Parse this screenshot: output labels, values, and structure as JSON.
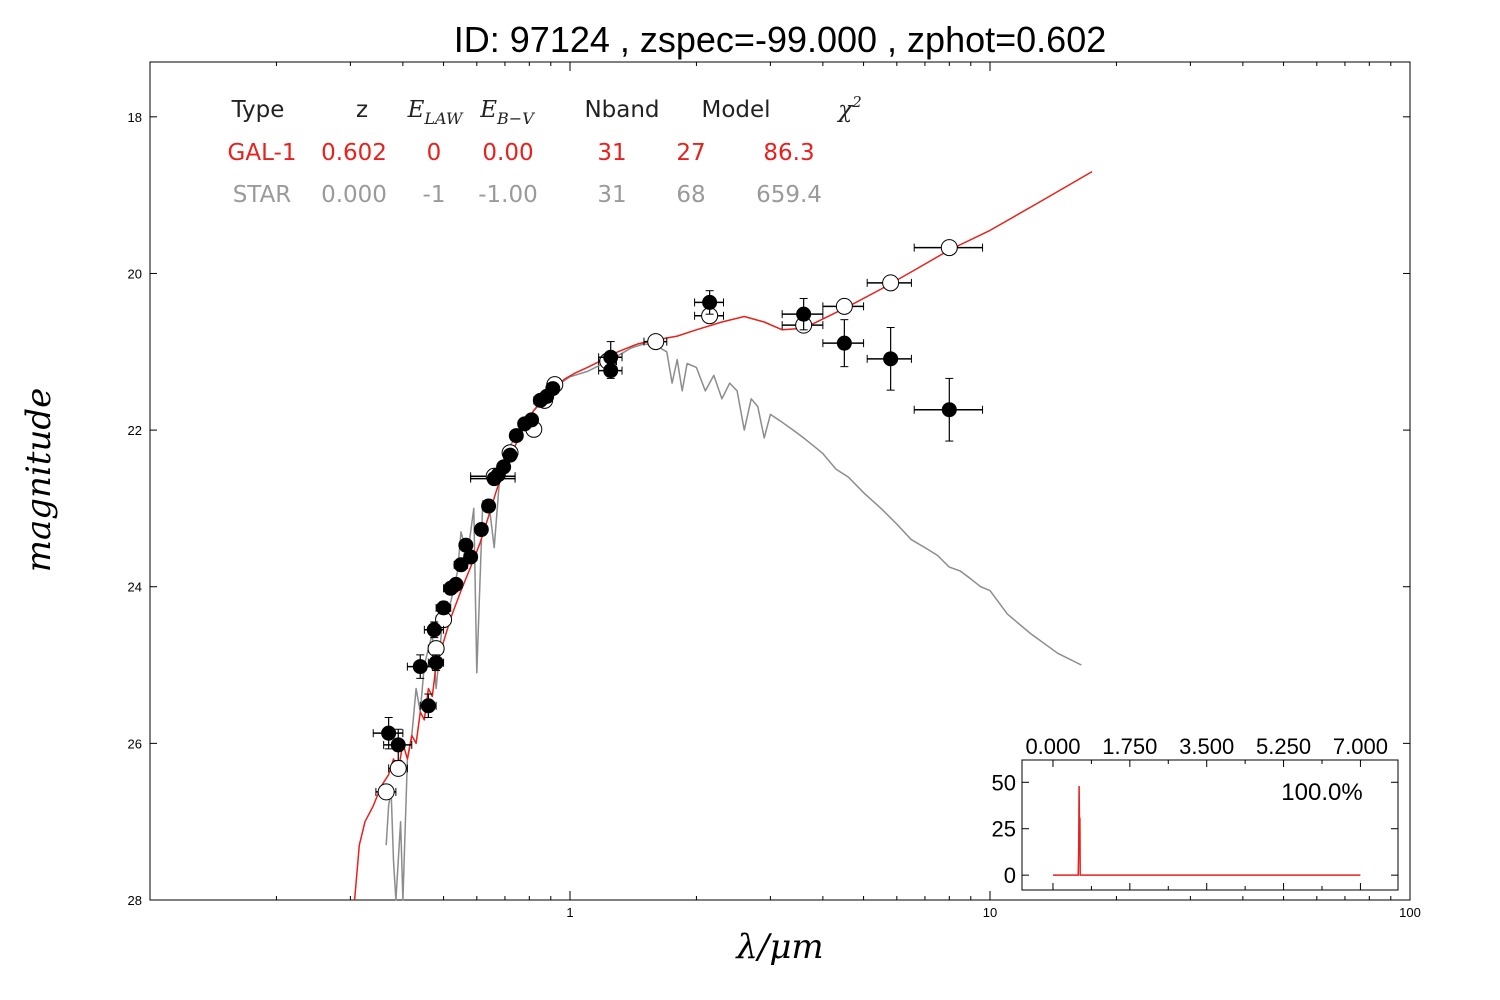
{
  "chart_data": {
    "type": "line",
    "title": "ID:  97124 , zspec=-99.000 , zphot=0.602",
    "xlabel": "λ/μm",
    "ylabel": "magnitude",
    "xscale": "log",
    "xlim": [
      0.1,
      100
    ],
    "ylim": [
      28,
      17.3
    ],
    "y_inverted": true,
    "x_ticks": [
      {
        "value": 1,
        "label": "1"
      },
      {
        "value": 10,
        "label": "10"
      },
      {
        "value": 100,
        "label": "100"
      }
    ],
    "y_ticks": [
      {
        "value": 18,
        "label": "18"
      },
      {
        "value": 20,
        "label": "20"
      },
      {
        "value": 22,
        "label": "22"
      },
      {
        "value": 24,
        "label": "24"
      },
      {
        "value": 26,
        "label": "26"
      },
      {
        "value": 28,
        "label": "28"
      }
    ],
    "table": {
      "headers": [
        {
          "text": "Type",
          "math": false
        },
        {
          "text": "z",
          "math": false
        },
        {
          "text": "E",
          "sub": "LAW",
          "math": true
        },
        {
          "text": "E",
          "sub": "B−V",
          "math": true
        },
        {
          "text": "Nband",
          "math": false
        },
        {
          "text": "Model",
          "math": false
        },
        {
          "text": "χ",
          "sup": "2",
          "math": true
        }
      ],
      "rows": [
        {
          "name": "GAL-1",
          "color": "#e8211c",
          "values": [
            "GAL-1",
            "0.602",
            "0",
            "0.00",
            "31",
            "27",
            "86.3"
          ]
        },
        {
          "name": "STAR",
          "color": "#9a9a9a",
          "values": [
            "STAR",
            "0.000",
            "-1",
            "-1.00",
            "31",
            "68",
            "659.4"
          ]
        }
      ]
    },
    "series": [
      {
        "name": "GAL-1",
        "color": "#e8211c",
        "points": [
          [
            0.307,
            28.0
          ],
          [
            0.315,
            27.3
          ],
          [
            0.325,
            27.0
          ],
          [
            0.34,
            26.8
          ],
          [
            0.355,
            26.55
          ],
          [
            0.37,
            26.4
          ],
          [
            0.38,
            26.2
          ],
          [
            0.39,
            26.35
          ],
          [
            0.4,
            26.0
          ],
          [
            0.41,
            26.2
          ],
          [
            0.42,
            25.9
          ],
          [
            0.43,
            26.0
          ],
          [
            0.44,
            25.6
          ],
          [
            0.45,
            25.7
          ],
          [
            0.46,
            25.3
          ],
          [
            0.47,
            25.4
          ],
          [
            0.48,
            25.0
          ],
          [
            0.5,
            24.7
          ],
          [
            0.52,
            24.4
          ],
          [
            0.55,
            24.05
          ],
          [
            0.58,
            23.75
          ],
          [
            0.61,
            23.45
          ],
          [
            0.64,
            23.1
          ],
          [
            0.67,
            22.75
          ],
          [
            0.7,
            22.5
          ],
          [
            0.74,
            22.2
          ],
          [
            0.78,
            21.95
          ],
          [
            0.82,
            21.75
          ],
          [
            0.87,
            21.6
          ],
          [
            0.92,
            21.47
          ],
          [
            0.97,
            21.35
          ],
          [
            1.03,
            21.27
          ],
          [
            1.1,
            21.2
          ],
          [
            1.2,
            21.1
          ],
          [
            1.3,
            21.0
          ],
          [
            1.45,
            20.9
          ],
          [
            1.6,
            20.85
          ],
          [
            1.8,
            20.8
          ],
          [
            2.0,
            20.72
          ],
          [
            2.3,
            20.62
          ],
          [
            2.6,
            20.55
          ],
          [
            2.9,
            20.62
          ],
          [
            3.2,
            20.72
          ],
          [
            3.6,
            20.7
          ],
          [
            4.0,
            20.58
          ],
          [
            4.6,
            20.42
          ],
          [
            5.5,
            20.2
          ],
          [
            6.5,
            19.98
          ],
          [
            8.0,
            19.7
          ],
          [
            10,
            19.45
          ],
          [
            13,
            19.1
          ],
          [
            17.5,
            18.7
          ]
        ]
      },
      {
        "name": "STAR",
        "color": "#8c8c8c",
        "points": [
          [
            0.365,
            27.3
          ],
          [
            0.37,
            26.8
          ],
          [
            0.375,
            26.6
          ],
          [
            0.38,
            27.5
          ],
          [
            0.385,
            28.0
          ],
          [
            0.395,
            27.0
          ],
          [
            0.4,
            28.0
          ],
          [
            0.41,
            26.2
          ],
          [
            0.42,
            25.9
          ],
          [
            0.43,
            25.3
          ],
          [
            0.44,
            25.6
          ],
          [
            0.45,
            25.0
          ],
          [
            0.47,
            24.6
          ],
          [
            0.48,
            25.3
          ],
          [
            0.5,
            24.3
          ],
          [
            0.52,
            24.2
          ],
          [
            0.54,
            23.8
          ],
          [
            0.55,
            23.3
          ],
          [
            0.57,
            23.6
          ],
          [
            0.59,
            23.0
          ],
          [
            0.6,
            25.1
          ],
          [
            0.62,
            22.9
          ],
          [
            0.64,
            22.9
          ],
          [
            0.66,
            23.5
          ],
          [
            0.68,
            22.6
          ],
          [
            0.7,
            22.3
          ],
          [
            0.72,
            22.2
          ],
          [
            0.75,
            22.05
          ],
          [
            0.78,
            21.9
          ],
          [
            0.82,
            21.75
          ],
          [
            0.86,
            21.6
          ],
          [
            0.9,
            21.5
          ],
          [
            0.95,
            21.4
          ],
          [
            1.0,
            21.32
          ],
          [
            1.1,
            21.25
          ],
          [
            1.2,
            21.15
          ],
          [
            1.3,
            21.05
          ],
          [
            1.4,
            20.95
          ],
          [
            1.5,
            20.9
          ],
          [
            1.6,
            20.92
          ],
          [
            1.7,
            21.0
          ],
          [
            1.75,
            21.4
          ],
          [
            1.8,
            21.1
          ],
          [
            1.85,
            21.5
          ],
          [
            1.9,
            21.15
          ],
          [
            2.0,
            21.2
          ],
          [
            2.1,
            21.5
          ],
          [
            2.2,
            21.3
          ],
          [
            2.3,
            21.6
          ],
          [
            2.4,
            21.4
          ],
          [
            2.5,
            21.5
          ],
          [
            2.6,
            22.0
          ],
          [
            2.7,
            21.6
          ],
          [
            2.8,
            21.7
          ],
          [
            2.9,
            22.1
          ],
          [
            3.0,
            21.8
          ],
          [
            3.2,
            21.9
          ],
          [
            3.4,
            22.0
          ],
          [
            3.6,
            22.1
          ],
          [
            3.8,
            22.2
          ],
          [
            4.0,
            22.3
          ],
          [
            4.3,
            22.5
          ],
          [
            4.6,
            22.6
          ],
          [
            5.0,
            22.8
          ],
          [
            5.5,
            23.0
          ],
          [
            6.0,
            23.2
          ],
          [
            6.5,
            23.4
          ],
          [
            7.0,
            23.5
          ],
          [
            7.5,
            23.6
          ],
          [
            8.0,
            23.75
          ],
          [
            8.5,
            23.8
          ],
          [
            9.0,
            23.9
          ],
          [
            9.5,
            24.0
          ],
          [
            10.0,
            24.05
          ],
          [
            11,
            24.35
          ],
          [
            12.5,
            24.6
          ],
          [
            14.5,
            24.85
          ],
          [
            16.5,
            25.0
          ]
        ]
      }
    ],
    "observed_points": [
      {
        "x": 0.37,
        "y": 25.87,
        "xerr_lo": 0.34,
        "xerr_hi": 0.4,
        "yerr": 0.2
      },
      {
        "x": 0.39,
        "y": 26.02,
        "xerr_lo": 0.36,
        "xerr_hi": 0.42,
        "yerr": 0.2
      },
      {
        "x": 0.44,
        "y": 25.02,
        "xerr_lo": 0.41,
        "xerr_hi": 0.47,
        "yerr": 0.15
      },
      {
        "x": 0.46,
        "y": 25.52,
        "xerr_lo": 0.44,
        "xerr_hi": 0.48,
        "yerr": 0.15
      },
      {
        "x": 0.475,
        "y": 24.55,
        "xerr_lo": 0.45,
        "xerr_hi": 0.5,
        "yerr": 0.1
      },
      {
        "x": 0.48,
        "y": 24.97,
        "xerr_lo": 0.46,
        "xerr_hi": 0.5,
        "yerr": 0.1
      },
      {
        "x": 0.5,
        "y": 24.27,
        "xerr_lo": 0.48,
        "xerr_hi": 0.52,
        "yerr": 0.08
      },
      {
        "x": 0.52,
        "y": 24.02,
        "xerr_lo": 0.5,
        "xerr_hi": 0.54,
        "yerr": 0.06
      },
      {
        "x": 0.535,
        "y": 23.97,
        "xerr_lo": 0.52,
        "xerr_hi": 0.55,
        "yerr": 0.06
      },
      {
        "x": 0.55,
        "y": 23.72,
        "xerr_lo": 0.53,
        "xerr_hi": 0.57,
        "yerr": 0.05
      },
      {
        "x": 0.565,
        "y": 23.47,
        "xerr_lo": 0.55,
        "xerr_hi": 0.58,
        "yerr": 0.05
      },
      {
        "x": 0.58,
        "y": 23.62,
        "xerr_lo": 0.56,
        "xerr_hi": 0.6,
        "yerr": 0.05
      },
      {
        "x": 0.615,
        "y": 23.27,
        "xerr_lo": 0.6,
        "xerr_hi": 0.63,
        "yerr": 0.05
      },
      {
        "x": 0.64,
        "y": 22.97,
        "xerr_lo": 0.62,
        "xerr_hi": 0.66,
        "yerr": 0.04
      },
      {
        "x": 0.66,
        "y": 22.62,
        "xerr_lo": 0.58,
        "xerr_hi": 0.74,
        "yerr": 0.04
      },
      {
        "x": 0.675,
        "y": 22.57,
        "xerr_lo": 0.66,
        "xerr_hi": 0.69,
        "yerr": 0.04
      },
      {
        "x": 0.695,
        "y": 22.47,
        "xerr_lo": 0.68,
        "xerr_hi": 0.71,
        "yerr": 0.04
      },
      {
        "x": 0.72,
        "y": 22.32,
        "xerr_lo": 0.7,
        "xerr_hi": 0.74,
        "yerr": 0.04
      },
      {
        "x": 0.745,
        "y": 22.07,
        "xerr_lo": 0.73,
        "xerr_hi": 0.76,
        "yerr": 0.04
      },
      {
        "x": 0.78,
        "y": 21.92,
        "xerr_lo": 0.76,
        "xerr_hi": 0.8,
        "yerr": 0.04
      },
      {
        "x": 0.81,
        "y": 21.87,
        "xerr_lo": 0.79,
        "xerr_hi": 0.83,
        "yerr": 0.04
      },
      {
        "x": 0.85,
        "y": 21.62,
        "xerr_lo": 0.82,
        "xerr_hi": 0.88,
        "yerr": 0.04
      },
      {
        "x": 0.88,
        "y": 21.57,
        "xerr_lo": 0.86,
        "xerr_hi": 0.9,
        "yerr": 0.04
      },
      {
        "x": 0.91,
        "y": 21.47,
        "xerr_lo": 0.89,
        "xerr_hi": 0.93,
        "yerr": 0.04
      },
      {
        "x": 1.25,
        "y": 21.07,
        "xerr_lo": 1.17,
        "xerr_hi": 1.33,
        "yerr": 0.2
      },
      {
        "x": 1.25,
        "y": 21.24,
        "xerr_lo": 1.17,
        "xerr_hi": 1.33,
        "yerr": 0.1
      },
      {
        "x": 2.15,
        "y": 20.37,
        "xerr_lo": 1.98,
        "xerr_hi": 2.32,
        "yerr": 0.15
      },
      {
        "x": 3.6,
        "y": 20.52,
        "xerr_lo": 3.2,
        "xerr_hi": 4.0,
        "yerr": 0.2
      },
      {
        "x": 4.5,
        "y": 20.89,
        "xerr_lo": 4.0,
        "xerr_hi": 5.0,
        "yerr": 0.3
      },
      {
        "x": 5.8,
        "y": 21.09,
        "xerr_lo": 5.1,
        "xerr_hi": 6.5,
        "yerr": 0.4
      },
      {
        "x": 8.0,
        "y": 21.74,
        "xerr_lo": 6.6,
        "xerr_hi": 9.6,
        "yerr": 0.4
      }
    ],
    "model_points": [
      {
        "x": 0.365,
        "y": 26.62,
        "xerr_lo": 0.345,
        "xerr_hi": 0.385
      },
      {
        "x": 0.39,
        "y": 26.32,
        "xerr_lo": 0.37,
        "xerr_hi": 0.41
      },
      {
        "x": 0.48,
        "y": 24.79,
        "xerr_lo": 0.46,
        "xerr_hi": 0.5
      },
      {
        "x": 0.5,
        "y": 24.42,
        "xerr_lo": 0.48,
        "xerr_hi": 0.52
      },
      {
        "x": 0.66,
        "y": 22.59,
        "xerr_lo": 0.58,
        "xerr_hi": 0.74
      },
      {
        "x": 0.72,
        "y": 22.29,
        "xerr_lo": 0.7,
        "xerr_hi": 0.74
      },
      {
        "x": 0.8,
        "y": 21.92,
        "xerr_lo": 0.78,
        "xerr_hi": 0.82
      },
      {
        "x": 0.82,
        "y": 21.99,
        "xerr_lo": 0.8,
        "xerr_hi": 0.84
      },
      {
        "x": 0.87,
        "y": 21.62,
        "xerr_lo": 0.85,
        "xerr_hi": 0.89
      },
      {
        "x": 0.92,
        "y": 21.42,
        "xerr_lo": 0.9,
        "xerr_hi": 0.94
      },
      {
        "x": 1.23,
        "y": 21.12,
        "xerr_lo": 1.17,
        "xerr_hi": 1.29
      },
      {
        "x": 1.6,
        "y": 20.87,
        "xerr_lo": 1.5,
        "xerr_hi": 1.7
      },
      {
        "x": 2.15,
        "y": 20.54,
        "xerr_lo": 1.98,
        "xerr_hi": 2.32
      },
      {
        "x": 3.6,
        "y": 20.66,
        "xerr_lo": 3.2,
        "xerr_hi": 4.0
      },
      {
        "x": 4.5,
        "y": 20.42,
        "xerr_lo": 4.0,
        "xerr_hi": 5.0
      },
      {
        "x": 5.8,
        "y": 20.12,
        "xerr_lo": 5.1,
        "xerr_hi": 6.5
      },
      {
        "x": 8.0,
        "y": 19.67,
        "xerr_lo": 6.6,
        "xerr_hi": 9.6
      }
    ],
    "inset": {
      "type": "line",
      "xlim": [
        -0.25,
        7.4
      ],
      "ylim": [
        -8,
        62
      ],
      "x_ticks": [
        {
          "value": 0.0,
          "label": "0.000"
        },
        {
          "value": 1.75,
          "label": "1.750"
        },
        {
          "value": 3.5,
          "label": "3.500"
        },
        {
          "value": 5.25,
          "label": "5.250"
        },
        {
          "value": 7.0,
          "label": "7.000"
        }
      ],
      "y_ticks": [
        {
          "value": 0,
          "label": "0"
        },
        {
          "value": 25,
          "label": "25"
        },
        {
          "value": 50,
          "label": "50"
        }
      ],
      "annotation": "100.0%",
      "color": "#e8211c",
      "points": [
        [
          0.0,
          0
        ],
        [
          0.575,
          0
        ],
        [
          0.585,
          15
        ],
        [
          0.595,
          48
        ],
        [
          0.605,
          20
        ],
        [
          0.612,
          31
        ],
        [
          0.62,
          0
        ],
        [
          7.0,
          0
        ]
      ]
    }
  }
}
